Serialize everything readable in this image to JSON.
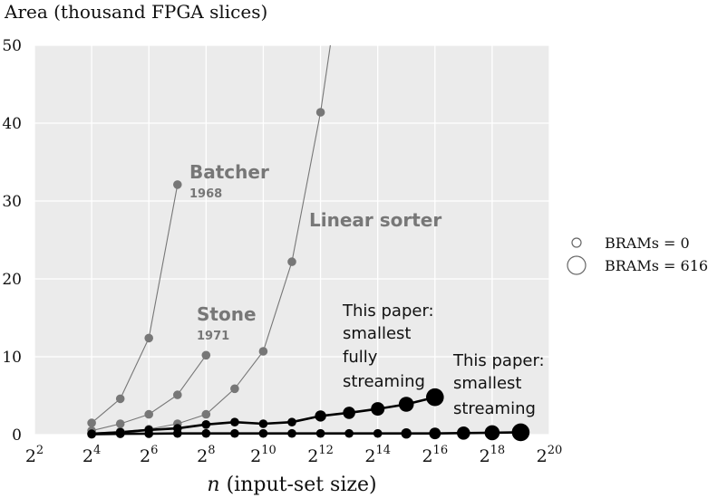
{
  "chart_data": {
    "type": "scatter",
    "title": "",
    "ylabel": "Area (thousand FPGA slices)",
    "xlabel_italic": "n",
    "xlabel_rest": " (input-set size)",
    "x_scale": "log2",
    "x_tick_base": "2",
    "x_tick_exponents": [
      "2",
      "4",
      "6",
      "8",
      "10",
      "12",
      "14",
      "16",
      "18",
      "20"
    ],
    "ylim": [
      0,
      50
    ],
    "y_ticks": [
      "0",
      "10",
      "20",
      "30",
      "40",
      "50"
    ],
    "grid": true,
    "legend_position": "right",
    "legend": [
      {
        "label": "BRAMs = 0",
        "marker": "small-open-circle"
      },
      {
        "label": "BRAMs = 616",
        "marker": "large-open-circle"
      }
    ],
    "series": [
      {
        "name": "Batcher",
        "year": "1968",
        "color": "#777777",
        "x": [
          16,
          32,
          64,
          128
        ],
        "y": [
          1.5,
          4.6,
          12.4,
          32.1
        ],
        "brams": [
          0,
          0,
          0,
          0
        ]
      },
      {
        "name": "Stone",
        "year": "1971",
        "color": "#777777",
        "x": [
          16,
          32,
          64,
          128,
          256
        ],
        "y": [
          0.5,
          1.4,
          2.6,
          5.1,
          10.2
        ],
        "brams": [
          0,
          0,
          0,
          0,
          0
        ]
      },
      {
        "name": "Linear sorter",
        "year": "",
        "color": "#777777",
        "x": [
          16,
          32,
          64,
          128,
          256,
          512,
          1024,
          2048,
          4096,
          5200
        ],
        "y": [
          0.2,
          0.4,
          0.7,
          1.4,
          2.6,
          5.9,
          10.7,
          22.2,
          41.4,
          50
        ],
        "brams": [
          0,
          0,
          0,
          0,
          0,
          0,
          0,
          0,
          0,
          null
        ]
      },
      {
        "name": "This paper: smallest fully streaming",
        "color": "#000000",
        "x": [
          16,
          32,
          64,
          128,
          256,
          512,
          1024,
          2048,
          4096,
          8192,
          16384,
          32768,
          65536
        ],
        "y": [
          0.1,
          0.3,
          0.6,
          0.8,
          1.3,
          1.6,
          1.4,
          1.6,
          2.4,
          2.8,
          3.3,
          3.9,
          4.8
        ],
        "brams": [
          0,
          0,
          0,
          0,
          0,
          0,
          0,
          0,
          50,
          100,
          180,
          300,
          616
        ]
      },
      {
        "name": "This paper: smallest streaming",
        "color": "#000000",
        "x": [
          16,
          32,
          64,
          128,
          256,
          512,
          1024,
          2048,
          4096,
          8192,
          16384,
          32768,
          65536,
          131072,
          262144,
          524288
        ],
        "y": [
          0.05,
          0.1,
          0.12,
          0.15,
          0.15,
          0.15,
          0.15,
          0.15,
          0.15,
          0.15,
          0.15,
          0.15,
          0.15,
          0.2,
          0.25,
          0.3
        ],
        "brams": [
          0,
          0,
          0,
          0,
          0,
          0,
          0,
          0,
          0,
          0,
          0,
          20,
          60,
          150,
          300,
          616
        ]
      }
    ],
    "annotations": {
      "batcher_name": "Batcher",
      "batcher_year": "1968",
      "stone_name": "Stone",
      "stone_year": "1971",
      "linear": "Linear sorter",
      "fully_lines": [
        "This paper:",
        "smallest",
        "fully",
        "streaming"
      ],
      "streaming_lines": [
        "This paper:",
        "smallest",
        "streaming"
      ]
    }
  }
}
